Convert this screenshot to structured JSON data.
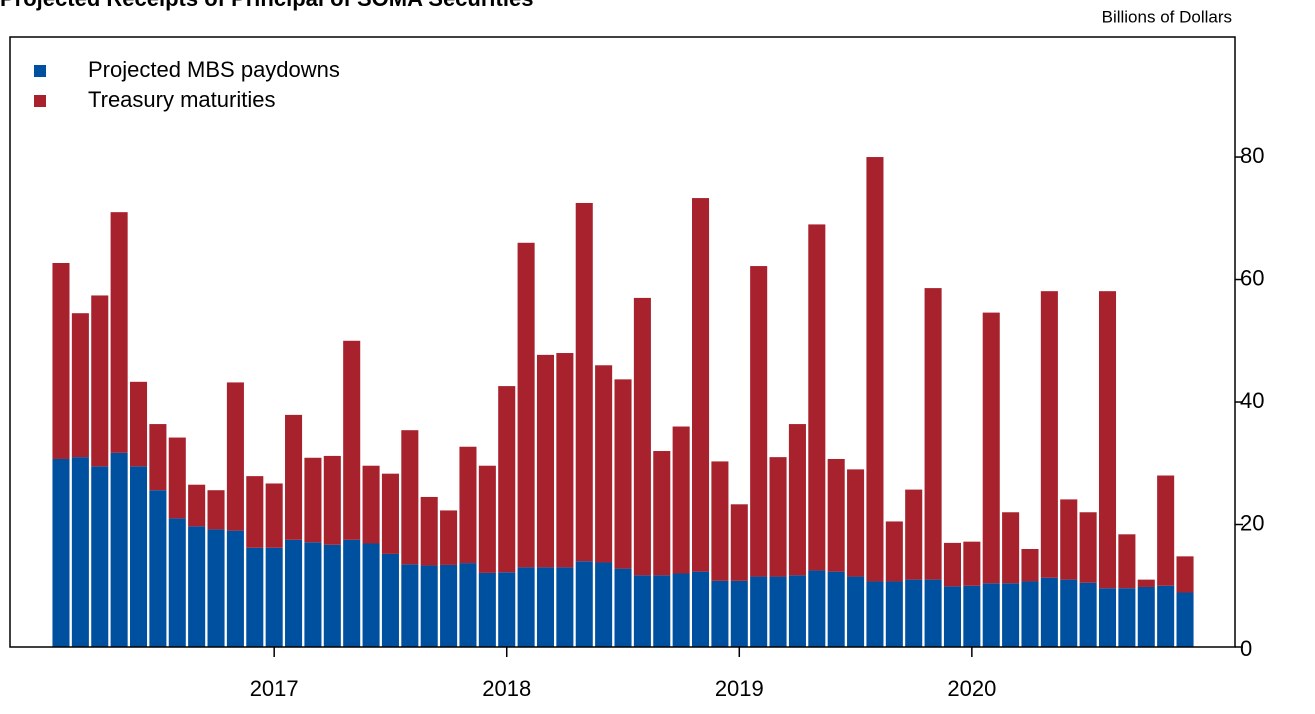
{
  "chart_data": {
    "type": "stacked_bar",
    "title": "Projected Receipts of Principal of SOMA Securities",
    "y_axis_label": "Billions of Dollars",
    "categories": [
      null,
      null,
      null,
      null,
      null,
      null,
      null,
      null,
      null,
      null,
      null,
      "2017",
      null,
      null,
      null,
      null,
      null,
      null,
      null,
      null,
      null,
      null,
      null,
      "2018",
      null,
      null,
      null,
      null,
      null,
      null,
      null,
      null,
      null,
      null,
      null,
      "2019",
      null,
      null,
      null,
      null,
      null,
      null,
      null,
      null,
      null,
      null,
      null,
      "2020",
      null,
      null,
      null,
      null,
      null,
      null,
      null,
      null,
      null,
      null,
      null
    ],
    "series": [
      {
        "name": "Projected MBS paydowns",
        "color": "#0050a0",
        "values": [
          30.7,
          31,
          29.5,
          31.7,
          29.5,
          25.6,
          21,
          19.7,
          19.2,
          19,
          16.2,
          16.2,
          17.5,
          17.1,
          16.7,
          17.5,
          16.9,
          15.2,
          13.5,
          13.3,
          13.4,
          13.7,
          12.1,
          12.2,
          13,
          13,
          13,
          14,
          13.8,
          12.8,
          11.7,
          11.7,
          12,
          12.3,
          10.8,
          10.8,
          11.5,
          11.5,
          11.7,
          12.5,
          12.3,
          11.5,
          10.7,
          10.7,
          11,
          11,
          9.9,
          10,
          10.4,
          10.4,
          10.7,
          11.3,
          11,
          10.5,
          9.6,
          9.6,
          9.8,
          10,
          8.9
        ]
      },
      {
        "name": "Treasury maturities",
        "color": "#a8222e",
        "values": [
          32,
          23.5,
          27.9,
          39.3,
          13.8,
          10.8,
          13.2,
          6.8,
          6.4,
          24.2,
          11.7,
          10.5,
          20.4,
          13.8,
          14.5,
          32.5,
          12.7,
          13.1,
          21.9,
          11.2,
          8.9,
          19,
          17.5,
          30.4,
          53,
          34.7,
          35,
          58.5,
          32.2,
          30.9,
          45.3,
          20.3,
          24,
          61,
          19.5,
          12.5,
          50.7,
          19.5,
          24.7,
          56.5,
          18.4,
          17.5,
          69.3,
          9.8,
          14.7,
          47.6,
          7.1,
          7.2,
          44.2,
          11.6,
          5.3,
          46.8,
          13.1,
          11.5,
          48.5,
          8.8,
          1.2,
          18,
          5.9
        ]
      }
    ],
    "ylim": [
      0,
      99.6
    ],
    "yticks": [
      0,
      20,
      40,
      60,
      80
    ],
    "y_axis_side": "right",
    "legend": "upper left"
  }
}
